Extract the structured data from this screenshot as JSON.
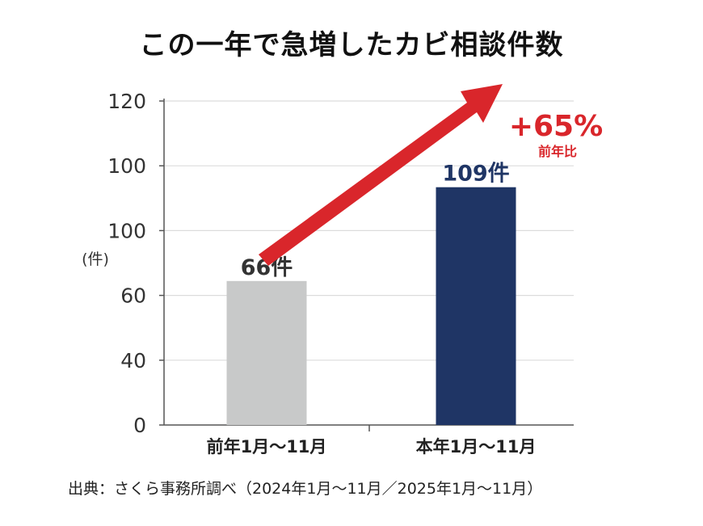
{
  "chart_data": {
    "type": "bar",
    "title": "この一年で急増したカビ相談件数",
    "ylabel": "(件)",
    "y_tick_labels": [
      "0",
      "40",
      "60",
      "100",
      "100",
      "120"
    ],
    "ylim": [
      0,
      120
    ],
    "grid": true,
    "categories": [
      "前年1月～11月",
      "本年1月～11月"
    ],
    "values": [
      66,
      109
    ],
    "data_labels": [
      "66件",
      "109件"
    ],
    "colors": [
      "#c8c9c9",
      "#1f3565"
    ],
    "annotation": {
      "text": "+65%",
      "subtext": "前年比",
      "color": "#d9262b",
      "arrow": "up-right"
    }
  },
  "source": "出典：さくら事務所調べ（2024年1月～11月／2025年1月～11月）"
}
